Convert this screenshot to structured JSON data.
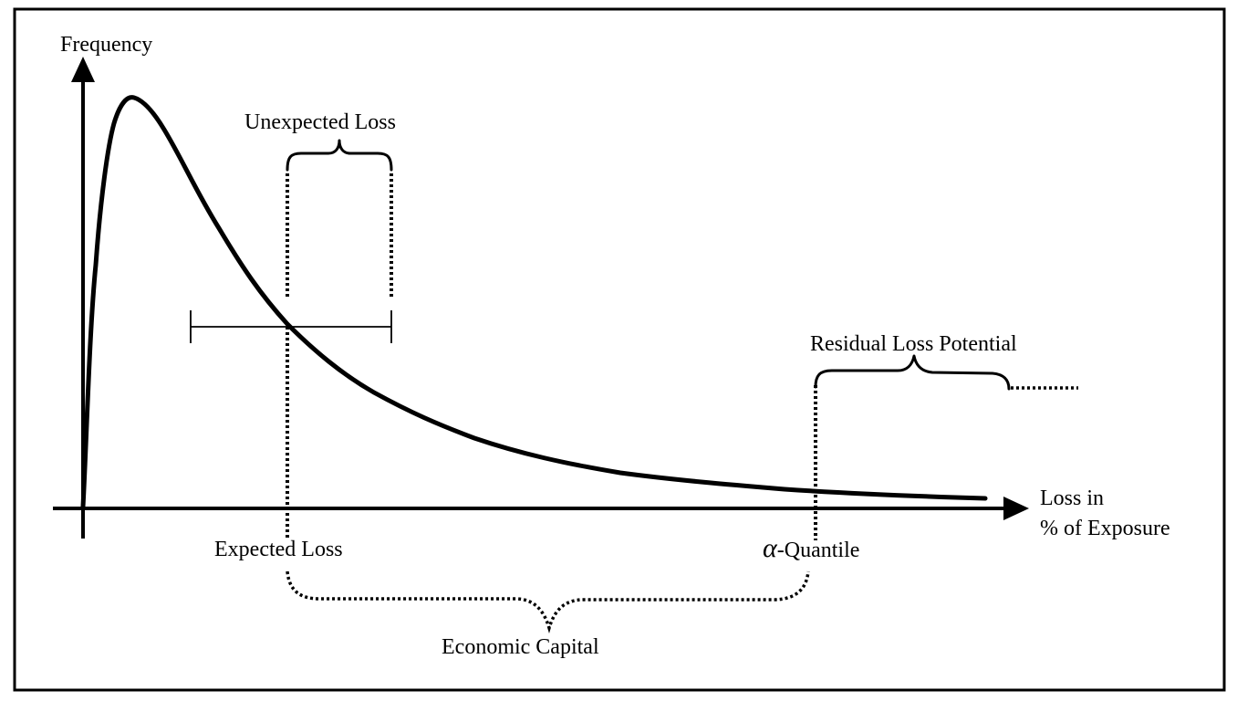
{
  "y_axis_label": "Frequency",
  "x_axis_label_line1": "Loss in",
  "x_axis_label_line2": "% of Exposure",
  "unexpected_loss_label": "Unexpected Loss",
  "residual_loss_label": "Residual Loss Potential",
  "expected_loss_label": "Expected Loss",
  "alpha_symbol": "α",
  "quantile_label": "-Quantile",
  "economic_capital_label": "Economic Capital",
  "colors": {
    "ink": "#000000",
    "background": "#ffffff"
  }
}
